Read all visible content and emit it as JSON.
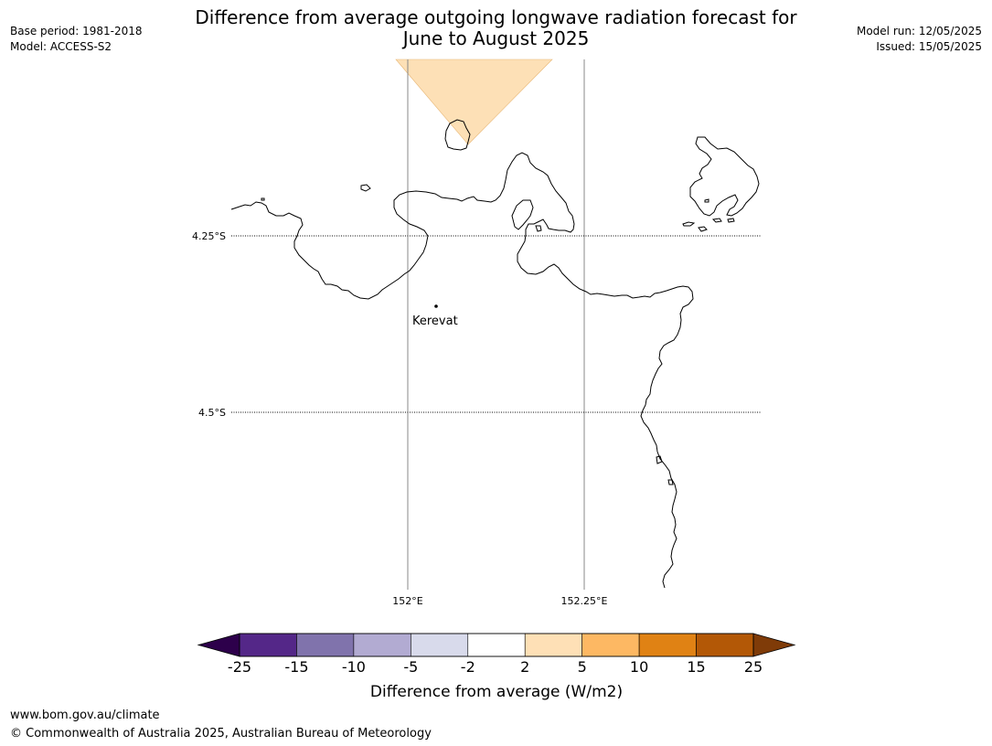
{
  "header": {
    "title_line1": "Difference from average outgoing longwave radiation forecast for",
    "title_line2": "June to August 2025",
    "base_period": "Base period: 1981-2018",
    "model": "Model: ACCESS-S2",
    "model_run": "Model run: 12/05/2025",
    "issued": "Issued: 15/05/2025"
  },
  "map": {
    "lat_labels": [
      "4.25°S",
      "4.5°S"
    ],
    "lon_labels": [
      "152°E",
      "152.25°E"
    ],
    "place_label": "Kerevat",
    "anomaly_fill_color": "#fde0b6"
  },
  "colorbar": {
    "title": "Difference from average (W/m2)",
    "tick_labels": [
      "-25",
      "-15",
      "-10",
      "-5",
      "-2",
      "2",
      "5",
      "10",
      "15",
      "25"
    ],
    "colors": [
      "#2d004b",
      "#542788",
      "#8073ac",
      "#b2abd2",
      "#d8daeb",
      "#ffffff",
      "#fee0b6",
      "#fdb863",
      "#e08214",
      "#b35806",
      "#7f3b08"
    ]
  },
  "footer": {
    "url": "www.bom.gov.au/climate",
    "copyright": "© Commonwealth of Australia 2025, Australian Bureau of Meteorology"
  }
}
